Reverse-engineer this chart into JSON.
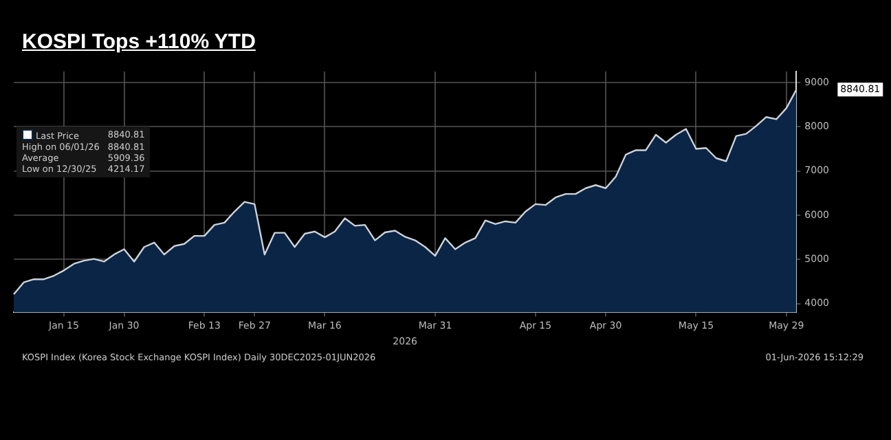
{
  "chart_data": {
    "type": "area",
    "title": "KOSPI Tops +110% YTD",
    "xlabel": "2026",
    "categories": [
      null,
      null,
      null,
      null,
      null,
      "Jan 15",
      null,
      null,
      null,
      null,
      null,
      "Jan 30",
      null,
      null,
      null,
      null,
      null,
      null,
      null,
      "Feb 13",
      null,
      null,
      null,
      null,
      "Feb 27",
      null,
      null,
      null,
      null,
      null,
      null,
      "Mar 16",
      null,
      null,
      null,
      null,
      null,
      null,
      null,
      null,
      null,
      null,
      "Mar 31",
      null,
      null,
      null,
      null,
      null,
      null,
      null,
      null,
      null,
      "Apr 15",
      null,
      null,
      null,
      null,
      null,
      null,
      "Apr 30",
      null,
      null,
      null,
      null,
      null,
      null,
      null,
      null,
      "May 15",
      null,
      null,
      null,
      null,
      null,
      null,
      null,
      null,
      "May 29",
      null
    ],
    "series": [
      {
        "name": "Last Price",
        "color": "#0b2546",
        "values": [
          4210,
          4480,
          4550,
          4550,
          4630,
          4750,
          4900,
          4970,
          5010,
          4950,
          5110,
          5230,
          4950,
          5280,
          5380,
          5110,
          5300,
          5350,
          5530,
          5530,
          5780,
          5830,
          6080,
          6300,
          6250,
          5110,
          5600,
          5600,
          5280,
          5580,
          5630,
          5500,
          5630,
          5930,
          5760,
          5780,
          5430,
          5610,
          5650,
          5510,
          5430,
          5280,
          5080,
          5480,
          5230,
          5380,
          5480,
          5880,
          5800,
          5860,
          5830,
          6080,
          6250,
          6230,
          6400,
          6480,
          6480,
          6610,
          6680,
          6610,
          6870,
          7370,
          7470,
          7470,
          7820,
          7640,
          7820,
          7950,
          7500,
          7520,
          7290,
          7220,
          7790,
          7840,
          8020,
          8220,
          8170,
          8420,
          8840
        ]
      }
    ],
    "ylim": [
      3800,
      9250
    ],
    "yticks": [
      4000,
      5000,
      6000,
      7000,
      8000,
      9000
    ],
    "grid": true,
    "line_style": "solid",
    "marker": "none",
    "legend": "top left",
    "annotations": [
      "8840.81",
      "KOSPI Index (Korea Stock Exchange KOSPI Index) Daily 30DEC2025-01JUN2026",
      "01-Jun-2026 15:12:29",
      "High on 06/01/26 8840.81",
      "Average 5909.36",
      "Low on 12/30/25 4214.17"
    ]
  }
}
